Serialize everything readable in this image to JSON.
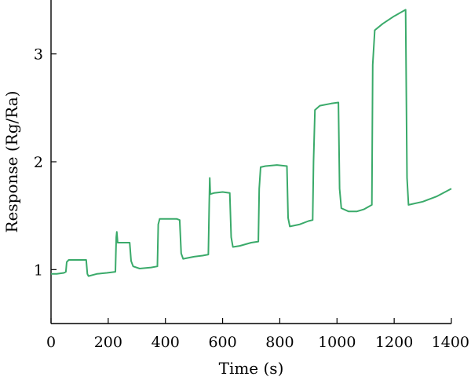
{
  "chart_data": {
    "type": "line",
    "title": "",
    "xlabel": "Time (s)",
    "ylabel": "Response (Rg/Ra)",
    "xlim": [
      0,
      1400
    ],
    "ylim": [
      0.5,
      3.5
    ],
    "xticks": [
      0,
      200,
      400,
      600,
      800,
      1000,
      1200,
      1400
    ],
    "yticks": [
      1,
      2,
      3
    ],
    "grid": false,
    "series_color": "#3aaa6a",
    "series": [
      {
        "points": [
          [
            0,
            0.96
          ],
          [
            20,
            0.96
          ],
          [
            45,
            0.97
          ],
          [
            52,
            0.98
          ],
          [
            55,
            1.07
          ],
          [
            62,
            1.09
          ],
          [
            80,
            1.09
          ],
          [
            100,
            1.09
          ],
          [
            123,
            1.09
          ],
          [
            127,
            0.96
          ],
          [
            131,
            0.94
          ],
          [
            160,
            0.96
          ],
          [
            195,
            0.97
          ],
          [
            225,
            0.98
          ],
          [
            228,
            1.3
          ],
          [
            230,
            1.35
          ],
          [
            233,
            1.25
          ],
          [
            255,
            1.25
          ],
          [
            275,
            1.25
          ],
          [
            280,
            1.08
          ],
          [
            287,
            1.03
          ],
          [
            310,
            1.01
          ],
          [
            350,
            1.02
          ],
          [
            372,
            1.03
          ],
          [
            375,
            1.42
          ],
          [
            380,
            1.47
          ],
          [
            400,
            1.47
          ],
          [
            440,
            1.47
          ],
          [
            450,
            1.46
          ],
          [
            455,
            1.15
          ],
          [
            462,
            1.1
          ],
          [
            500,
            1.12
          ],
          [
            530,
            1.13
          ],
          [
            550,
            1.14
          ],
          [
            553,
            1.6
          ],
          [
            555,
            1.85
          ],
          [
            557,
            1.7
          ],
          [
            570,
            1.71
          ],
          [
            600,
            1.72
          ],
          [
            625,
            1.71
          ],
          [
            630,
            1.3
          ],
          [
            636,
            1.21
          ],
          [
            660,
            1.22
          ],
          [
            700,
            1.25
          ],
          [
            725,
            1.26
          ],
          [
            728,
            1.75
          ],
          [
            733,
            1.95
          ],
          [
            750,
            1.96
          ],
          [
            790,
            1.97
          ],
          [
            825,
            1.96
          ],
          [
            829,
            1.48
          ],
          [
            835,
            1.4
          ],
          [
            870,
            1.42
          ],
          [
            900,
            1.45
          ],
          [
            915,
            1.46
          ],
          [
            918,
            2.0
          ],
          [
            923,
            2.48
          ],
          [
            940,
            2.52
          ],
          [
            980,
            2.54
          ],
          [
            1005,
            2.55
          ],
          [
            1009,
            1.75
          ],
          [
            1015,
            1.57
          ],
          [
            1040,
            1.54
          ],
          [
            1070,
            1.54
          ],
          [
            1095,
            1.56
          ],
          [
            1122,
            1.6
          ],
          [
            1125,
            2.9
          ],
          [
            1132,
            3.22
          ],
          [
            1160,
            3.28
          ],
          [
            1200,
            3.35
          ],
          [
            1240,
            3.41
          ],
          [
            1245,
            1.85
          ],
          [
            1250,
            1.6
          ],
          [
            1300,
            1.63
          ],
          [
            1350,
            1.68
          ],
          [
            1400,
            1.75
          ]
        ]
      }
    ]
  }
}
